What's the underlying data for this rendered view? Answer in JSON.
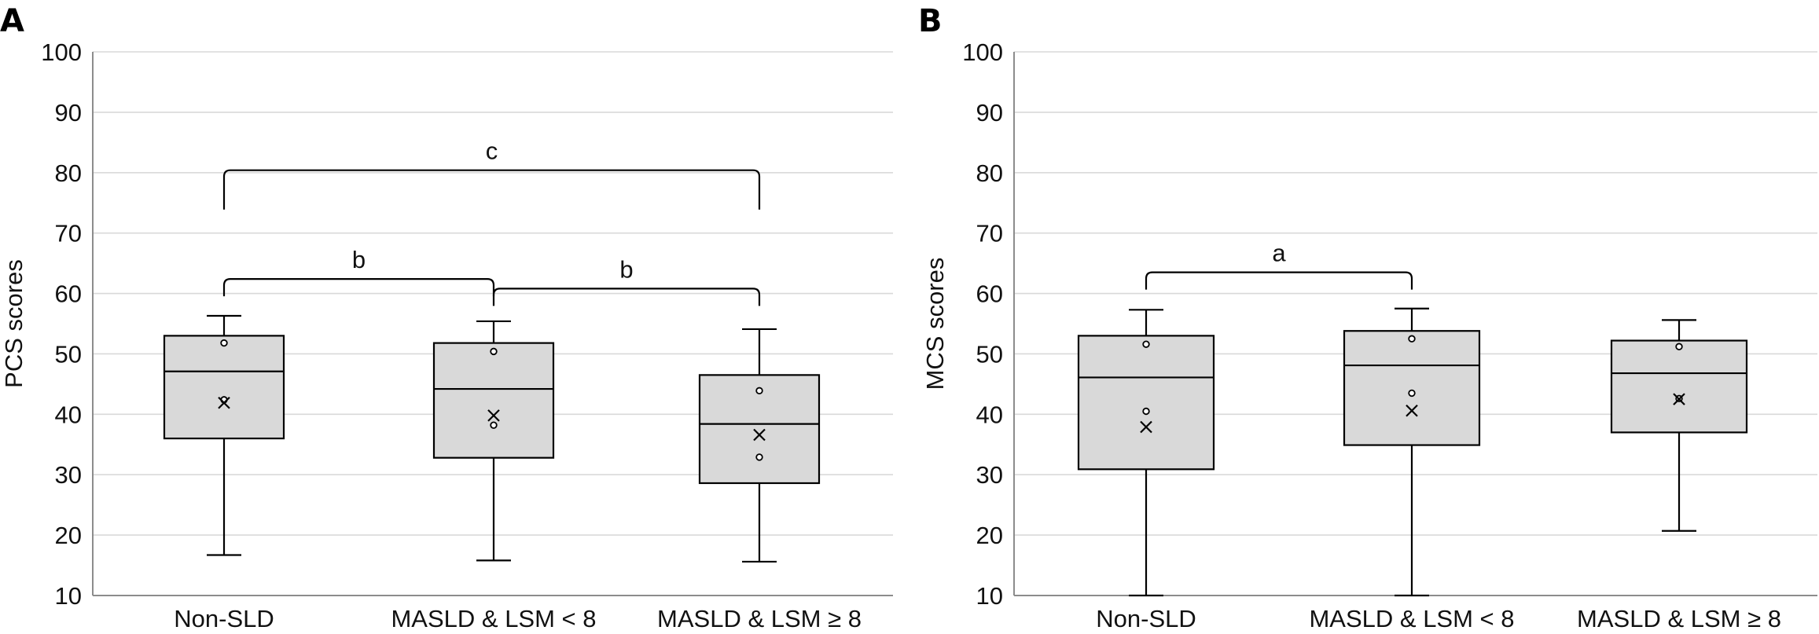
{
  "chart_data": [
    {
      "type": "box",
      "panel_letter": "A",
      "ylabel": "PCS scores",
      "ylim": [
        10,
        100
      ],
      "yticks": [
        10,
        20,
        30,
        40,
        50,
        60,
        70,
        80,
        90,
        100
      ],
      "grid": true,
      "categories": [
        "Non-SLD",
        "MASLD & LSM < 8",
        "MASLD & LSM ≥ 8"
      ],
      "boxes": [
        {
          "min": 16.7,
          "q1": 36.0,
          "median": 47.1,
          "q3": 53.0,
          "max": 56.3,
          "mean": 41.9,
          "outliers": [
            51.8,
            42.4
          ]
        },
        {
          "min": 15.8,
          "q1": 32.8,
          "median": 44.2,
          "q3": 51.8,
          "max": 55.4,
          "mean": 39.8,
          "outliers": [
            50.4,
            38.2
          ]
        },
        {
          "min": 15.6,
          "q1": 28.6,
          "median": 38.4,
          "q3": 46.5,
          "max": 54.1,
          "mean": 36.6,
          "outliers": [
            43.9,
            32.9
          ]
        }
      ],
      "significance": [
        {
          "from": 0,
          "to": 2,
          "label": "c",
          "level": 80.4
        },
        {
          "from": 0,
          "to": 1,
          "label": "b",
          "level": 62.4
        },
        {
          "from": 1,
          "to": 2,
          "label": "b",
          "level": 60.8
        }
      ]
    },
    {
      "type": "box",
      "panel_letter": "B",
      "ylabel": "MCS scores",
      "ylim": [
        10,
        100
      ],
      "yticks": [
        10,
        20,
        30,
        40,
        50,
        60,
        70,
        80,
        90,
        100
      ],
      "grid": true,
      "categories": [
        "Non-SLD",
        "MASLD & LSM < 8",
        "MASLD & LSM ≥ 8"
      ],
      "boxes": [
        {
          "min": 10.0,
          "q1": 30.9,
          "median": 46.1,
          "q3": 53.0,
          "max": 57.3,
          "mean": 37.9,
          "outliers": [
            51.6,
            40.5
          ]
        },
        {
          "min": 10.0,
          "q1": 34.9,
          "median": 48.1,
          "q3": 53.8,
          "max": 57.5,
          "mean": 40.6,
          "outliers": [
            52.5,
            43.5
          ]
        },
        {
          "min": 20.7,
          "q1": 37.0,
          "median": 46.8,
          "q3": 52.2,
          "max": 55.6,
          "mean": 42.5,
          "outliers": [
            51.2,
            42.6
          ]
        }
      ],
      "significance": [
        {
          "from": 0,
          "to": 1,
          "label": "a",
          "level": 63.5
        }
      ]
    }
  ]
}
